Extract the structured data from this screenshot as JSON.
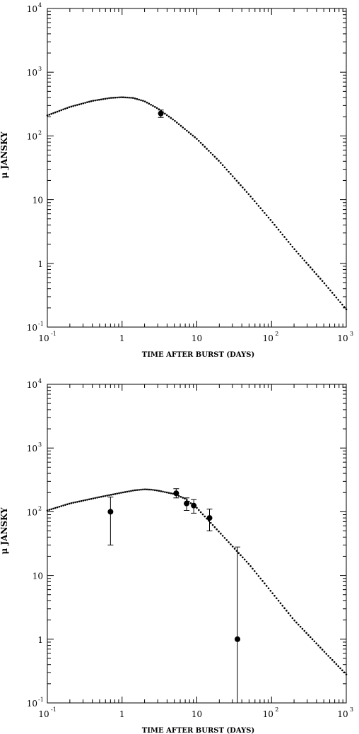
{
  "chart_data": [
    {
      "type": "scatter",
      "xlabel": "TIME AFTER BURST (DAYS)",
      "ylabel": "μ JANSKY",
      "xscale": "log",
      "yscale": "log",
      "xlim": [
        0.1,
        1000
      ],
      "ylim": [
        0.1,
        10000
      ],
      "grid": false,
      "x_tick_labels": [
        {
          "base": "10",
          "exp": "-1"
        },
        {
          "base": "1",
          "exp": ""
        },
        {
          "base": "10",
          "exp": ""
        },
        {
          "base": "10",
          "exp": "2"
        },
        {
          "base": "10",
          "exp": "3"
        }
      ],
      "y_tick_labels": [
        {
          "base": "10",
          "exp": "-1"
        },
        {
          "base": "1",
          "exp": ""
        },
        {
          "base": "10",
          "exp": ""
        },
        {
          "base": "10",
          "exp": "2"
        },
        {
          "base": "10",
          "exp": "3"
        },
        {
          "base": "10",
          "exp": "4"
        }
      ],
      "series": [
        {
          "kind": "model-curve",
          "style": "dotted",
          "points": [
            [
              0.1,
              210
            ],
            [
              0.2,
              285
            ],
            [
              0.4,
              355
            ],
            [
              0.7,
              395
            ],
            [
              1.0,
              405
            ],
            [
              1.4,
              395
            ],
            [
              2.0,
              350
            ],
            [
              3.0,
              270
            ],
            [
              5.0,
              175
            ],
            [
              10.0,
              90
            ],
            [
              20.0,
              40
            ],
            [
              50.0,
              12
            ],
            [
              100.0,
              4.6
            ],
            [
              200.0,
              1.7
            ],
            [
              500.0,
              0.5
            ],
            [
              1000.0,
              0.19
            ]
          ]
        },
        {
          "kind": "measurements",
          "points": [
            {
              "x": 3.3,
              "y": 225,
              "ylo": 195,
              "yhi": 255
            }
          ]
        }
      ]
    },
    {
      "type": "scatter",
      "xlabel": "TIME AFTER BURST (DAYS)",
      "ylabel": "μ JANSKY",
      "xscale": "log",
      "yscale": "log",
      "xlim": [
        0.1,
        1000
      ],
      "ylim": [
        0.1,
        10000
      ],
      "grid": false,
      "x_tick_labels": [
        {
          "base": "10",
          "exp": "-1"
        },
        {
          "base": "1",
          "exp": ""
        },
        {
          "base": "10",
          "exp": ""
        },
        {
          "base": "10",
          "exp": "2"
        },
        {
          "base": "10",
          "exp": "3"
        }
      ],
      "y_tick_labels": [
        {
          "base": "10",
          "exp": "-1"
        },
        {
          "base": "1",
          "exp": ""
        },
        {
          "base": "10",
          "exp": ""
        },
        {
          "base": "10",
          "exp": "2"
        },
        {
          "base": "10",
          "exp": "3"
        },
        {
          "base": "10",
          "exp": "4"
        }
      ],
      "series": [
        {
          "kind": "model-curve",
          "style": "dotted",
          "points": [
            [
              0.1,
              105
            ],
            [
              0.2,
              135
            ],
            [
              0.5,
              170
            ],
            [
              1.0,
              200
            ],
            [
              1.5,
              218
            ],
            [
              2.0,
              225
            ],
            [
              2.5,
              222
            ],
            [
              3.0,
              215
            ],
            [
              5.0,
              190
            ],
            [
              7.0,
              160
            ],
            [
              10.0,
              115
            ],
            [
              20.0,
              48
            ],
            [
              50.0,
              15
            ],
            [
              100.0,
              5.5
            ],
            [
              200.0,
              2.0
            ],
            [
              500.0,
              0.65
            ],
            [
              1000.0,
              0.28
            ]
          ]
        },
        {
          "kind": "measurements",
          "points": [
            {
              "x": 0.7,
              "y": 100,
              "ylo": 30,
              "yhi": 170
            },
            {
              "x": 5.3,
              "y": 195,
              "ylo": 165,
              "yhi": 230
            },
            {
              "x": 7.3,
              "y": 135,
              "ylo": 105,
              "yhi": 165
            },
            {
              "x": 9.1,
              "y": 125,
              "ylo": 95,
              "yhi": 155
            },
            {
              "x": 14.8,
              "y": 80,
              "ylo": 50,
              "yhi": 110
            },
            {
              "x": 35.0,
              "y": 1.0,
              "ylo": 0.1,
              "yhi": 28
            }
          ]
        }
      ]
    }
  ]
}
